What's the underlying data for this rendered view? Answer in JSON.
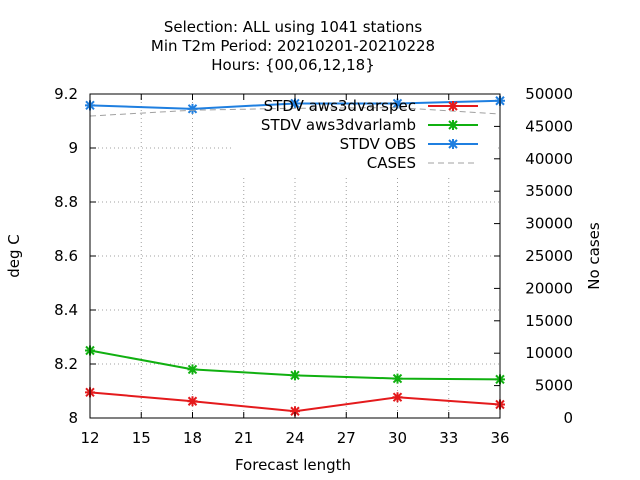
{
  "chart_data": {
    "type": "line",
    "title_lines": [
      "Selection: ALL using  1041 stations",
      "Min T2m   Period: 20210201-20210228",
      "Hours: {00,06,12,18}"
    ],
    "xlabel": "Forecast length",
    "ylabel": "deg C",
    "y2label": "No cases",
    "x": [
      12,
      18,
      24,
      30,
      36
    ],
    "xlim": [
      12,
      36
    ],
    "xticks": [
      12,
      15,
      18,
      21,
      24,
      27,
      30,
      33,
      36
    ],
    "ylim": [
      8.0,
      9.2
    ],
    "yticks": [
      8,
      8.2,
      8.4,
      8.6,
      8.8,
      9,
      9.2
    ],
    "y2lim": [
      0,
      50000
    ],
    "y2ticks": [
      0,
      5000,
      10000,
      15000,
      20000,
      25000,
      30000,
      35000,
      40000,
      45000,
      50000
    ],
    "grid": true,
    "legend_position": "top-right",
    "series": [
      {
        "name": "STDV aws3dvarspec",
        "color": "#e41a1c",
        "axis": "left",
        "marker": "x",
        "values": [
          8.095,
          8.062,
          8.025,
          8.077,
          8.05
        ]
      },
      {
        "name": "STDV aws3dvarlamb",
        "color": "#10b010",
        "axis": "left",
        "marker": "x",
        "values": [
          8.25,
          8.18,
          8.158,
          8.146,
          8.143
        ]
      },
      {
        "name": "STDV OBS",
        "color": "#1f7fe0",
        "axis": "left",
        "marker": "x",
        "values": [
          9.158,
          9.145,
          9.165,
          9.165,
          9.175
        ]
      },
      {
        "name": "CASES",
        "color": "#a0a0a0",
        "axis": "right",
        "marker": "none",
        "dashed": true,
        "values": [
          46600,
          47500,
          47800,
          47900,
          46900
        ]
      }
    ]
  }
}
